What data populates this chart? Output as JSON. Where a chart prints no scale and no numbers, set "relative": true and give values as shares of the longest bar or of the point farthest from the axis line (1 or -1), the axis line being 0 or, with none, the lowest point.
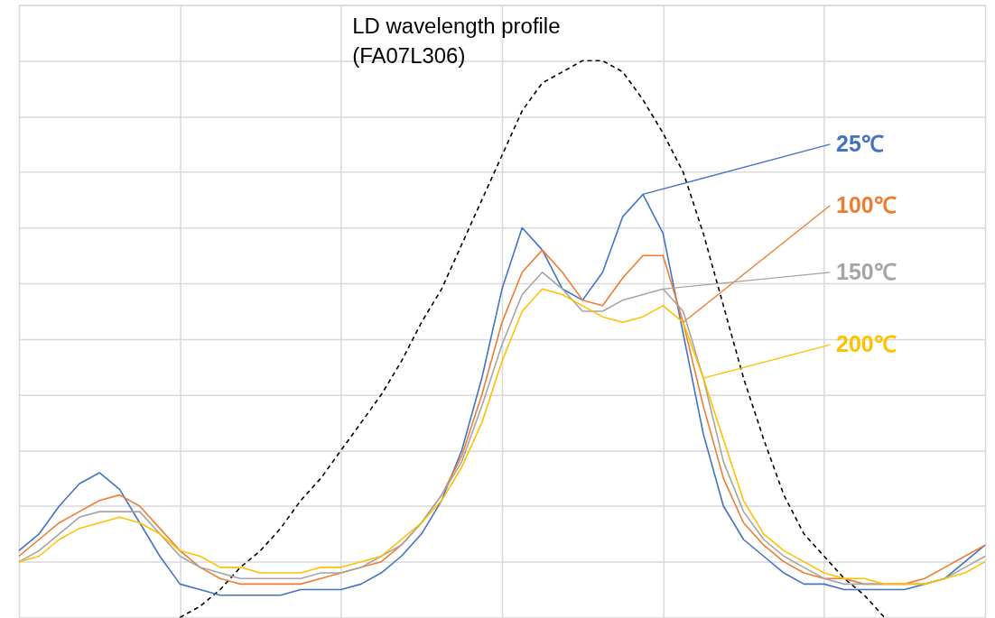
{
  "chart_data": {
    "type": "line",
    "title": "LD wavelength profile\n(FA07L306)",
    "relative": true,
    "grid": true,
    "marker": "none",
    "categories": [
      null,
      null,
      null,
      null,
      null,
      null,
      null,
      null,
      null,
      null,
      null,
      null,
      null,
      null,
      null,
      null,
      null,
      null,
      null,
      null,
      null,
      null,
      null,
      null,
      null,
      null,
      null,
      null,
      null,
      null,
      null,
      null,
      null,
      null,
      null,
      null,
      null,
      null,
      null,
      null,
      null,
      null,
      null,
      null,
      null,
      null,
      null,
      null,
      null
    ],
    "series": [
      {
        "color": "#000000",
        "line_style": "dashed",
        "values": [
          null,
          null,
          null,
          null,
          null,
          null,
          null,
          null,
          0,
          0.02,
          0.05,
          0.09,
          0.12,
          0.16,
          0.21,
          0.25,
          0.3,
          0.35,
          0.4,
          0.46,
          0.53,
          0.59,
          0.67,
          0.75,
          0.83,
          0.91,
          0.96,
          0.98,
          1.0,
          1.0,
          0.98,
          0.93,
          0.87,
          0.8,
          0.69,
          0.56,
          0.43,
          0.32,
          0.22,
          0.15,
          0.11,
          0.07,
          0.04,
          0,
          null,
          null,
          null,
          null,
          null
        ]
      },
      {
        "name": "25℃",
        "color": "#4472c4",
        "line_style": "solid",
        "values": [
          0.12,
          0.15,
          0.2,
          0.24,
          0.26,
          0.23,
          0.17,
          0.11,
          0.06,
          0.05,
          0.04,
          0.04,
          0.04,
          0.04,
          0.05,
          0.05,
          0.05,
          0.06,
          0.08,
          0.11,
          0.15,
          0.21,
          0.3,
          0.43,
          0.59,
          0.7,
          0.66,
          0.59,
          0.57,
          0.62,
          0.72,
          0.76,
          0.69,
          0.51,
          0.33,
          0.2,
          0.14,
          0.11,
          0.08,
          0.06,
          0.06,
          0.05,
          0.05,
          0.05,
          0.05,
          0.06,
          0.07,
          0.1,
          0.13
        ]
      },
      {
        "name": "100℃",
        "color": "#ed7d31",
        "line_style": "solid",
        "values": [
          0.11,
          0.14,
          0.17,
          0.19,
          0.21,
          0.22,
          0.2,
          0.16,
          0.12,
          0.09,
          0.07,
          0.06,
          0.06,
          0.06,
          0.06,
          0.07,
          0.08,
          0.09,
          0.1,
          0.13,
          0.17,
          0.22,
          0.29,
          0.4,
          0.53,
          0.62,
          0.66,
          0.62,
          0.57,
          0.56,
          0.61,
          0.65,
          0.65,
          0.53,
          0.38,
          0.25,
          0.17,
          0.13,
          0.1,
          0.08,
          0.07,
          0.07,
          0.06,
          0.06,
          0.06,
          0.07,
          0.09,
          0.11,
          0.13
        ]
      },
      {
        "name": "150℃",
        "color": "#a5a5a5",
        "line_style": "solid",
        "values": [
          0.1,
          0.12,
          0.15,
          0.18,
          0.19,
          0.19,
          0.19,
          0.15,
          0.11,
          0.09,
          0.08,
          0.07,
          0.07,
          0.07,
          0.07,
          0.08,
          0.08,
          0.09,
          0.11,
          0.13,
          0.17,
          0.22,
          0.28,
          0.38,
          0.49,
          0.58,
          0.62,
          0.59,
          0.55,
          0.55,
          0.57,
          0.58,
          0.59,
          0.55,
          0.43,
          0.28,
          0.19,
          0.14,
          0.11,
          0.09,
          0.07,
          0.06,
          0.06,
          0.06,
          0.06,
          0.06,
          0.07,
          0.09,
          0.11
        ]
      },
      {
        "name": "200℃",
        "color": "#ffc000",
        "line_style": "solid",
        "values": [
          0.1,
          0.11,
          0.14,
          0.16,
          0.17,
          0.18,
          0.17,
          0.15,
          0.12,
          0.11,
          0.09,
          0.09,
          0.08,
          0.08,
          0.08,
          0.09,
          0.09,
          0.1,
          0.11,
          0.14,
          0.17,
          0.21,
          0.27,
          0.35,
          0.46,
          0.55,
          0.59,
          0.58,
          0.56,
          0.54,
          0.53,
          0.54,
          0.56,
          0.53,
          0.43,
          0.32,
          0.21,
          0.15,
          0.12,
          0.1,
          0.08,
          0.07,
          0.07,
          0.06,
          0.06,
          0.06,
          0.07,
          0.08,
          0.1
        ]
      }
    ]
  }
}
